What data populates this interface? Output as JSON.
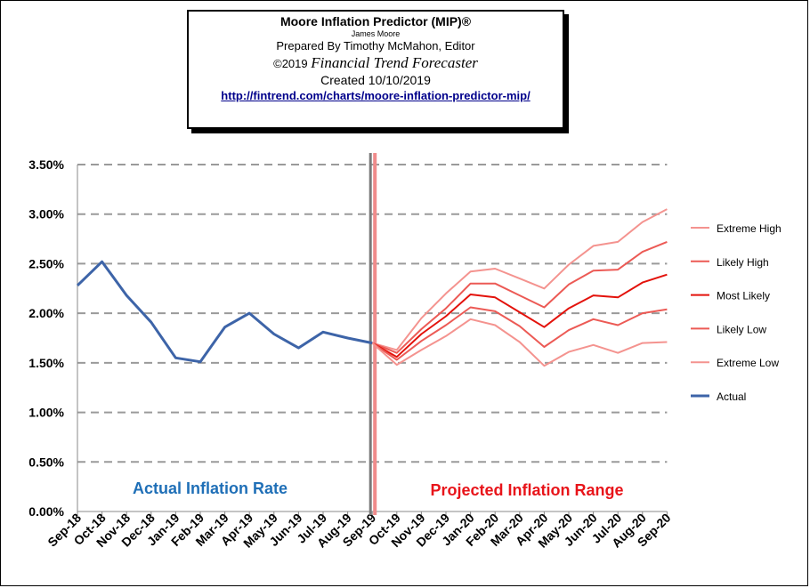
{
  "header": {
    "title": "Moore Inflation Predictor (MIP)®",
    "author": "James Moore",
    "prepared_by": "Prepared  By Timothy McMahon, Editor",
    "copyright": "©2019",
    "publication": "Financial Trend Forecaster",
    "created": "Created  10/10/2019",
    "url": "http://fintrend.com/charts/moore-inflation-predictor-mip/"
  },
  "chart_data": {
    "type": "line",
    "categories": [
      "Sep-18",
      "Oct-18",
      "Nov-18",
      "Dec-18",
      "Jan-19",
      "Feb-19",
      "Mar-19",
      "Apr-19",
      "May-19",
      "Jun-19",
      "Jul-19",
      "Aug-19",
      "Sep-19",
      "Oct-19",
      "Nov-19",
      "Dec-19",
      "Jan-20",
      "Feb-20",
      "Mar-20",
      "Apr-20",
      "May-20",
      "Jun-20",
      "Jul-20",
      "Aug-20",
      "Sep-20"
    ],
    "ylim": [
      0,
      3.5
    ],
    "yticks": [
      "0.00%",
      "0.50%",
      "1.00%",
      "1.50%",
      "2.00%",
      "2.50%",
      "3.00%",
      "3.50%"
    ],
    "grid": true,
    "legend_position": "right",
    "series": [
      {
        "name": "Extreme High",
        "color": "#f4938f",
        "values": [
          null,
          null,
          null,
          null,
          null,
          null,
          null,
          null,
          null,
          null,
          null,
          null,
          1.7,
          1.63,
          1.95,
          2.2,
          2.42,
          2.45,
          2.35,
          2.25,
          2.49,
          2.68,
          2.72,
          2.92,
          3.05
        ]
      },
      {
        "name": "Likely High",
        "color": "#ec5a55",
        "values": [
          null,
          null,
          null,
          null,
          null,
          null,
          null,
          null,
          null,
          null,
          null,
          null,
          1.7,
          1.6,
          1.84,
          2.05,
          2.3,
          2.3,
          2.18,
          2.06,
          2.29,
          2.43,
          2.44,
          2.62,
          2.72
        ]
      },
      {
        "name": "Most Likely",
        "color": "#e3120b",
        "values": [
          null,
          null,
          null,
          null,
          null,
          null,
          null,
          null,
          null,
          null,
          null,
          null,
          1.7,
          1.56,
          1.79,
          1.97,
          2.19,
          2.16,
          2.01,
          1.86,
          2.05,
          2.18,
          2.16,
          2.31,
          2.39
        ]
      },
      {
        "name": "Likely Low",
        "color": "#ec5a55",
        "values": [
          null,
          null,
          null,
          null,
          null,
          null,
          null,
          null,
          null,
          null,
          null,
          null,
          1.7,
          1.53,
          1.72,
          1.88,
          2.06,
          2.02,
          1.87,
          1.66,
          1.83,
          1.94,
          1.88,
          2.0,
          2.04
        ]
      },
      {
        "name": "Extreme Low",
        "color": "#f4938f",
        "values": [
          null,
          null,
          null,
          null,
          null,
          null,
          null,
          null,
          null,
          null,
          null,
          null,
          1.7,
          1.48,
          1.63,
          1.77,
          1.94,
          1.88,
          1.71,
          1.47,
          1.61,
          1.68,
          1.6,
          1.7,
          1.71
        ]
      },
      {
        "name": "Actual",
        "color": "#3d64a8",
        "values": [
          2.28,
          2.52,
          2.18,
          1.91,
          1.55,
          1.51,
          1.86,
          2.0,
          1.79,
          1.65,
          1.81,
          1.75,
          1.7,
          null,
          null,
          null,
          null,
          null,
          null,
          null,
          null,
          null,
          null,
          null,
          null
        ]
      }
    ],
    "annotations": [
      {
        "text": "Actual Inflation Rate",
        "color": "#1f6fb7"
      },
      {
        "text": "Projected Inflation Range",
        "color": "#e8141a"
      }
    ]
  }
}
